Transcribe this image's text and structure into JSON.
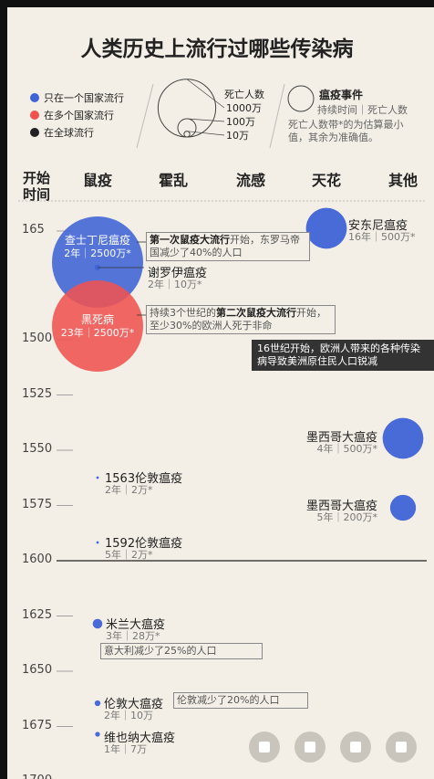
{
  "title": "人类历史上流行过哪些传染病",
  "legend": {
    "items": [
      {
        "label": "只在一个国家流行",
        "color": "#3f63d6"
      },
      {
        "label": "在多个国家流行",
        "color": "#ef5350"
      },
      {
        "label": "在全球流行",
        "color": "#222222"
      }
    ],
    "size_title": "死亡人数",
    "size_scale": [
      {
        "value": 10000000,
        "label": "1000万"
      },
      {
        "value": 1000000,
        "label": "100万"
      },
      {
        "value": 100000,
        "label": "10万"
      }
    ],
    "event_title": "瘟疫事件",
    "event_sub": "持续时间｜死亡人数",
    "note": "死亡人数带*的为估算最小值，其余为准确值。"
  },
  "time_header": [
    "开始",
    "时间"
  ],
  "columns": [
    "鼠疫",
    "霍乱",
    "流感",
    "天花",
    "其他"
  ],
  "yticks": [
    165,
    1500,
    1525,
    1550,
    1575,
    1600,
    1625,
    1650,
    1675,
    1700
  ],
  "emphasized_tick": 1600,
  "events": [
    {
      "name": "查士丁尼瘟疫",
      "info": "2年｜2500万*",
      "deaths": 25000000,
      "color": "#3f63d6"
    },
    {
      "name": "谢罗伊瘟疫",
      "info": "2年｜10万*",
      "deaths": 100000,
      "color": "#3f63d6"
    },
    {
      "name": "黑死病",
      "info": "23年｜2500万*",
      "deaths": 25000000,
      "color": "#ef5350"
    },
    {
      "name": "安东尼瘟疫",
      "info": "16年｜500万*",
      "deaths": 5000000,
      "color": "#3f63d6"
    },
    {
      "name": "1563伦敦瘟疫",
      "info": "2年｜2万*",
      "deaths": 20000,
      "color": "#3f63d6"
    },
    {
      "name": "1592伦敦瘟疫",
      "info": "5年｜2万*",
      "deaths": 20000,
      "color": "#3f63d6"
    },
    {
      "name": "米兰大瘟疫",
      "info": "3年｜28万*",
      "deaths": 280000,
      "color": "#3f63d6"
    },
    {
      "name": "伦敦大瘟疫",
      "info": "2年｜10万",
      "deaths": 100000,
      "color": "#3f63d6"
    },
    {
      "name": "维也纳大瘟疫",
      "info": "1年｜7万",
      "deaths": 70000,
      "color": "#3f63d6"
    },
    {
      "name": "墨西哥大瘟疫",
      "info": "4年｜500万*",
      "deaths": 5000000,
      "color": "#3f63d6"
    },
    {
      "name": "墨西哥大瘟疫",
      "info": "5年｜200万*",
      "deaths": 2000000,
      "color": "#3f63d6"
    }
  ],
  "annotations": [
    {
      "parts": [
        {
          "text": "第一次鼠疫大流行",
          "bold": true
        },
        {
          "text": "开始，东罗马帝国减少了40%的人口",
          "bold": false
        }
      ]
    },
    {
      "parts": [
        {
          "text": "持续3个世纪的",
          "bold": false
        },
        {
          "text": "第二次鼠疫大流行",
          "bold": true
        },
        {
          "text": "开始，至少30%的欧洲人死于非命",
          "bold": false
        }
      ]
    },
    {
      "parts": [
        {
          "text": "16世纪开始，欧洲人带来的各种传染病导致美洲原住民人口锐减",
          "bold": false
        }
      ]
    },
    {
      "parts": [
        {
          "text": "意大利减少了25%的人口",
          "bold": false
        }
      ]
    },
    {
      "parts": [
        {
          "text": "伦敦减少了20%的人口",
          "bold": false
        }
      ]
    }
  ]
}
